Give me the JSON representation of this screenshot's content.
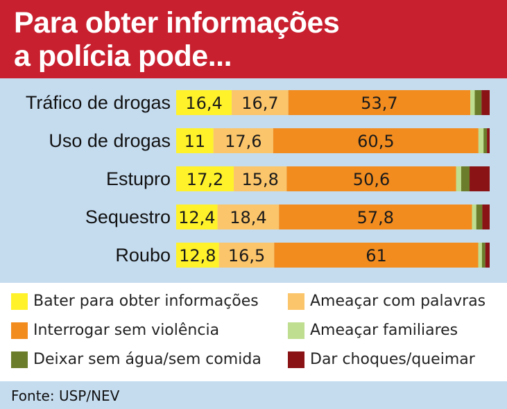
{
  "title_lines": [
    "Para obter informações",
    "a polícia pode..."
  ],
  "source": "Fonte: USP/NEV",
  "chart_data": {
    "type": "bar",
    "orientation": "horizontal",
    "stacked": true,
    "categories": [
      "Tráfico de drogas",
      "Uso de drogas",
      "Estupro",
      "Sequestro",
      "Roubo"
    ],
    "series": [
      {
        "name": "Bater para obter informações",
        "color": "#fff22a",
        "values": [
          16.4,
          11,
          17.2,
          12.4,
          12.8
        ]
      },
      {
        "name": "Ameaçar com palavras",
        "color": "#fbc56b",
        "values": [
          16.7,
          17.6,
          15.8,
          18.4,
          16.5
        ]
      },
      {
        "name": "Interrogar sem violência",
        "color": "#f28c1f",
        "values": [
          53.7,
          60.5,
          50.6,
          57.8,
          61
        ]
      },
      {
        "name": "Ameaçar familiares",
        "color": "#bfde8f",
        "values": [
          1.3,
          1.5,
          1.5,
          1.3,
          1.1
        ]
      },
      {
        "name": "Deixar sem água/sem comida",
        "color": "#6b7d2b",
        "values": [
          2,
          1,
          2.5,
          1.8,
          1
        ]
      },
      {
        "name": "Dar choques/queimar",
        "color": "#8a1315",
        "values": [
          2.4,
          0.8,
          6,
          2.2,
          1.3
        ]
      }
    ],
    "data_labels": [
      [
        "16,4",
        "16,7",
        "53,7"
      ],
      [
        "11",
        "17,6",
        "60,5"
      ],
      [
        "17,2",
        "15,8",
        "50,6"
      ],
      [
        "12,4",
        "18,4",
        "57,8"
      ],
      [
        "12,8",
        "16,5",
        "61"
      ]
    ],
    "legend_position": "bottom",
    "grid": false
  }
}
